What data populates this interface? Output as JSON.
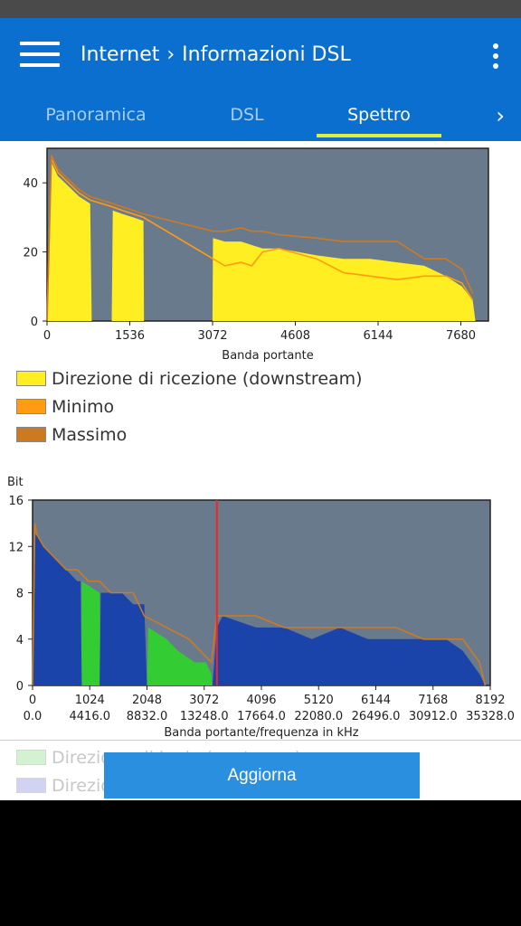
{
  "header": {
    "crumb_root": "Internet",
    "crumb_page": "Informazioni DSL",
    "tabs": [
      "Panoramica",
      "DSL",
      "Spettro"
    ],
    "active_tab": "Spettro",
    "accent_color": "#0a6fce",
    "indicator_color": "#e3ee3a",
    "icons": [
      "hamburger-menu-icon",
      "chevron-right-icon",
      "more-vert-icon"
    ]
  },
  "legend_top": {
    "items": [
      {
        "label": "Direzione di ricezione (downstream)",
        "color": "#ffee22"
      },
      {
        "label": "Minimo",
        "color": "#ff9c11"
      },
      {
        "label": "Massimo",
        "color": "#cc7a22"
      }
    ]
  },
  "legend_bottom": {
    "items": [
      {
        "label": "Direzione di invio (upstream)",
        "color": "#c8f0c8"
      },
      {
        "label": "Direzione di ricezione (downstream)",
        "color": "#c8c8f0"
      }
    ]
  },
  "refresh_label": "Aggiorna",
  "chart_data": [
    {
      "type": "area",
      "xlabel": "Banda portante",
      "ylabel": "",
      "xlim": [
        0,
        8192
      ],
      "ylim": [
        0,
        50
      ],
      "xticks": [
        0,
        1536,
        3072,
        4608,
        6144,
        7680
      ],
      "yticks": [
        0,
        20,
        40
      ],
      "background": "#6a7a8d",
      "series": [
        {
          "name": "Direzione di ricezione (downstream)",
          "color": "#ffee22",
          "x": [
            0,
            80,
            200,
            400,
            600,
            800,
            830,
            1200,
            1220,
            1400,
            1600,
            1790,
            1800,
            3070,
            3080,
            3300,
            3600,
            3800,
            4000,
            4300,
            5000,
            5500,
            6000,
            6500,
            7000,
            7400,
            7700,
            7900,
            7950
          ],
          "y": [
            0,
            46,
            42,
            39,
            36,
            34,
            0,
            0,
            32,
            31,
            30,
            29,
            0,
            0,
            24,
            23,
            23,
            22,
            21,
            21,
            19,
            18,
            18,
            17,
            16,
            13,
            10,
            6,
            0
          ]
        },
        {
          "name": "Minimo",
          "color": "#ff9c11",
          "x": [
            0,
            80,
            200,
            400,
            600,
            800,
            1220,
            1400,
            1600,
            1790,
            3080,
            3300,
            3600,
            3800,
            4000,
            4300,
            5000,
            5500,
            6000,
            6500,
            7000,
            7400,
            7700,
            7900
          ],
          "y": [
            0,
            47,
            43,
            40,
            37,
            35,
            33,
            32,
            31,
            30,
            18,
            16,
            17,
            16,
            20,
            21,
            18,
            14,
            13,
            12,
            13,
            13,
            11,
            6
          ]
        },
        {
          "name": "Massimo",
          "color": "#cc7a22",
          "x": [
            0,
            80,
            200,
            400,
            600,
            800,
            1220,
            1400,
            1600,
            1790,
            3080,
            3300,
            3600,
            3800,
            4000,
            4300,
            5000,
            5500,
            6000,
            6500,
            7000,
            7400,
            7700,
            7900
          ],
          "y": [
            0,
            48,
            44,
            41,
            38,
            36,
            34,
            33,
            32,
            31,
            26,
            26,
            27,
            26,
            26,
            25,
            24,
            23,
            23,
            23,
            18,
            18,
            15,
            8
          ]
        }
      ]
    },
    {
      "type": "area",
      "xlabel": "Banda portante/frequenza in kHz",
      "ylabel": "Bit",
      "xlim": [
        0,
        8192
      ],
      "ylim": [
        0,
        16
      ],
      "xticks": [
        0,
        1024,
        2048,
        3072,
        4096,
        5120,
        6144,
        7168,
        8192
      ],
      "xticks_khz": [
        "0.0",
        "4416.0",
        "8832.0",
        "13248.0",
        "17664.0",
        "22080.0",
        "26496.0",
        "30912.0",
        "35328.0"
      ],
      "yticks": [
        0,
        4,
        8,
        12,
        16
      ],
      "background": "#6a7a8d",
      "marker_x": 3300,
      "series": [
        {
          "name": "Direzione di invio (upstream)",
          "color": "#33cc33",
          "x": [
            860,
            880,
            1200,
            1220,
            2048,
            2070,
            2400,
            2600,
            2900,
            3100,
            3200,
            3220
          ],
          "y": [
            0,
            9,
            8,
            0,
            0,
            5,
            4,
            3,
            2,
            2,
            1,
            0
          ]
        },
        {
          "name": "Direzione di ricezione (downstream)",
          "color": "#1a44aa",
          "x": [
            0,
            40,
            80,
            200,
            400,
            600,
            800,
            860,
            880,
            1200,
            1220,
            1400,
            1600,
            1800,
            2000,
            2048,
            3220,
            3300,
            3400,
            4000,
            4500,
            5000,
            5500,
            6000,
            6500,
            7000,
            7400,
            7700,
            8000,
            8100
          ],
          "y": [
            0,
            13,
            13,
            12,
            11,
            10,
            9,
            9,
            0,
            0,
            8,
            8,
            8,
            7,
            7,
            0,
            0,
            5,
            6,
            5,
            5,
            4,
            5,
            4,
            4,
            4,
            4,
            3,
            1,
            0
          ]
        },
        {
          "name": "Massimo",
          "color": "#cc7a22",
          "x": [
            0,
            40,
            80,
            200,
            400,
            600,
            800,
            1000,
            1200,
            1400,
            1600,
            1800,
            2000,
            2400,
            2800,
            3200,
            3300,
            3400,
            4000,
            4500,
            5000,
            5500,
            6000,
            6500,
            7000,
            7400,
            7700,
            8000,
            8100
          ],
          "y": [
            0,
            14,
            13,
            12,
            11,
            10,
            10,
            9,
            9,
            8,
            8,
            8,
            6,
            5,
            4,
            2,
            6,
            6,
            6,
            5,
            5,
            5,
            5,
            5,
            4,
            4,
            4,
            2,
            0
          ]
        }
      ]
    }
  ]
}
